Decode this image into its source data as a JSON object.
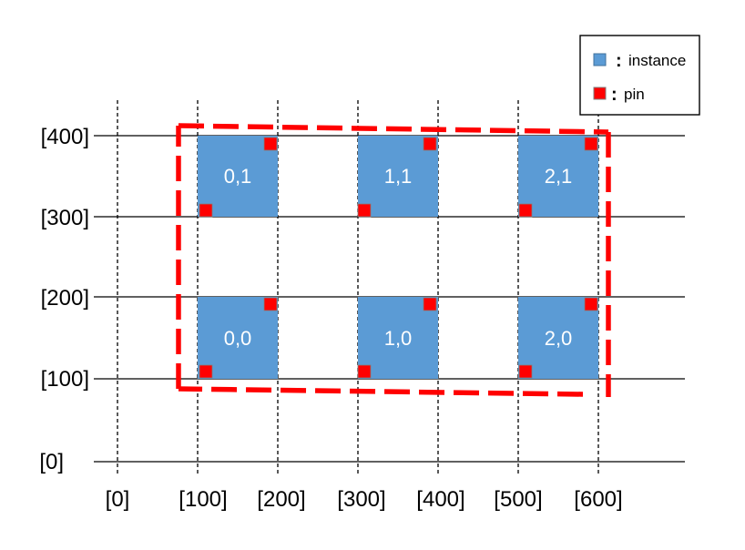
{
  "colors": {
    "instance_fill": "#5b9bd5",
    "pin_fill": "#ff0000",
    "boundary": "#ff0000",
    "grid": "#000000"
  },
  "x_ticks": [
    "[0]",
    "[100]",
    "[200]",
    "[300]",
    "[400]",
    "[500]",
    "[600]"
  ],
  "y_ticks": [
    "[400]",
    "[300]",
    "[200]",
    "[100]",
    "[0]"
  ],
  "instances": [
    {
      "label": "0,1"
    },
    {
      "label": "1,1"
    },
    {
      "label": "2,1"
    },
    {
      "label": "0,0"
    },
    {
      "label": "1,0"
    },
    {
      "label": "2,0"
    }
  ],
  "legend": {
    "instance_label": "instance",
    "pin_label": "pin",
    "colon": ":"
  }
}
